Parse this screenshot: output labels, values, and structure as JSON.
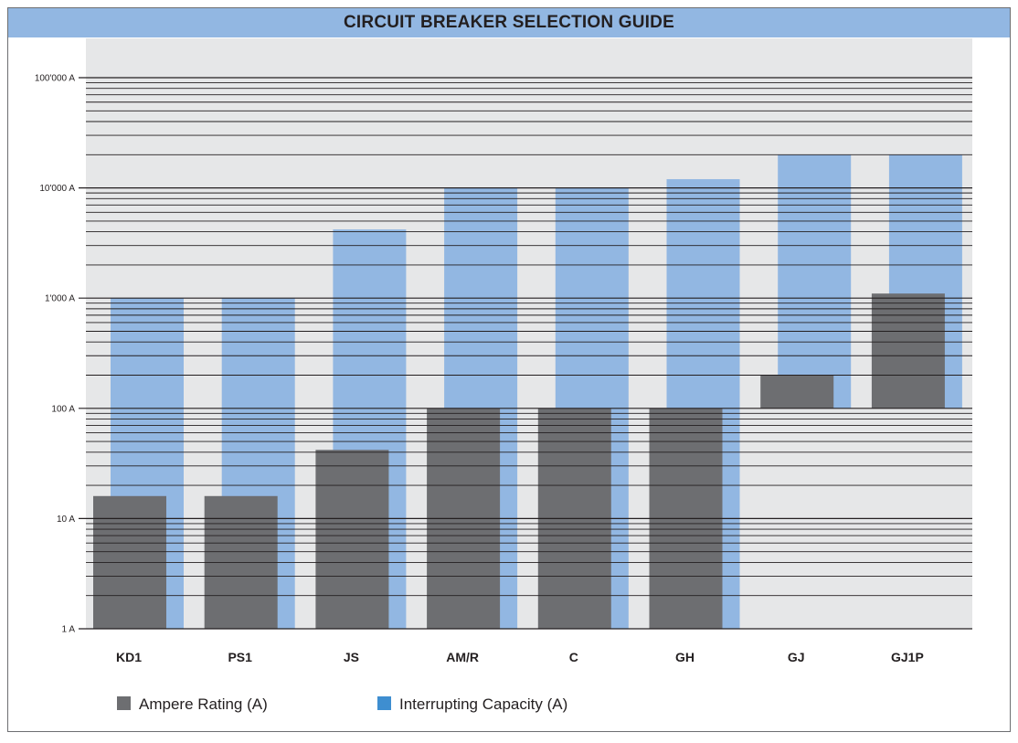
{
  "colors": {
    "header_bg": "#92b7e2",
    "plot_bg": "#e6e7e8",
    "ampere": "#6d6e71",
    "capacity": "#92b7e2",
    "capacity_legend": "#3e8ed0",
    "gridline": "#231f20"
  },
  "chart_data": {
    "type": "bar",
    "title": "CIRCUIT BREAKER SELECTION GUIDE",
    "xlabel": "",
    "ylabel": "",
    "y_scale": "log",
    "ylim": [
      1,
      100000
    ],
    "y_ticks": [
      {
        "value": 1,
        "label": "1 A"
      },
      {
        "value": 10,
        "label": "10 A"
      },
      {
        "value": 100,
        "label": "100 A"
      },
      {
        "value": 1000,
        "label": "1'000 A"
      },
      {
        "value": 10000,
        "label": "10'000 A"
      },
      {
        "value": 100000,
        "label": "100'000 A"
      }
    ],
    "grid": true,
    "legend_position": "bottom-left",
    "categories": [
      "KD1",
      "PS1",
      "JS",
      "AM/R",
      "C",
      "GH",
      "GJ",
      "GJ1P"
    ],
    "series": [
      {
        "name": "Ampere Rating (A)",
        "color": "#6d6e71",
        "base": [
          1,
          1,
          1,
          1,
          1,
          1,
          100,
          100
        ],
        "values": [
          16,
          16,
          42,
          100,
          100,
          100,
          200,
          1100
        ]
      },
      {
        "name": "Interrupting Capacity (A)",
        "color": "#92b7e2",
        "base": [
          1,
          1,
          1,
          1,
          1,
          1,
          100,
          100
        ],
        "values": [
          1000,
          1000,
          4200,
          10000,
          10000,
          12000,
          20000,
          20000
        ]
      }
    ]
  }
}
